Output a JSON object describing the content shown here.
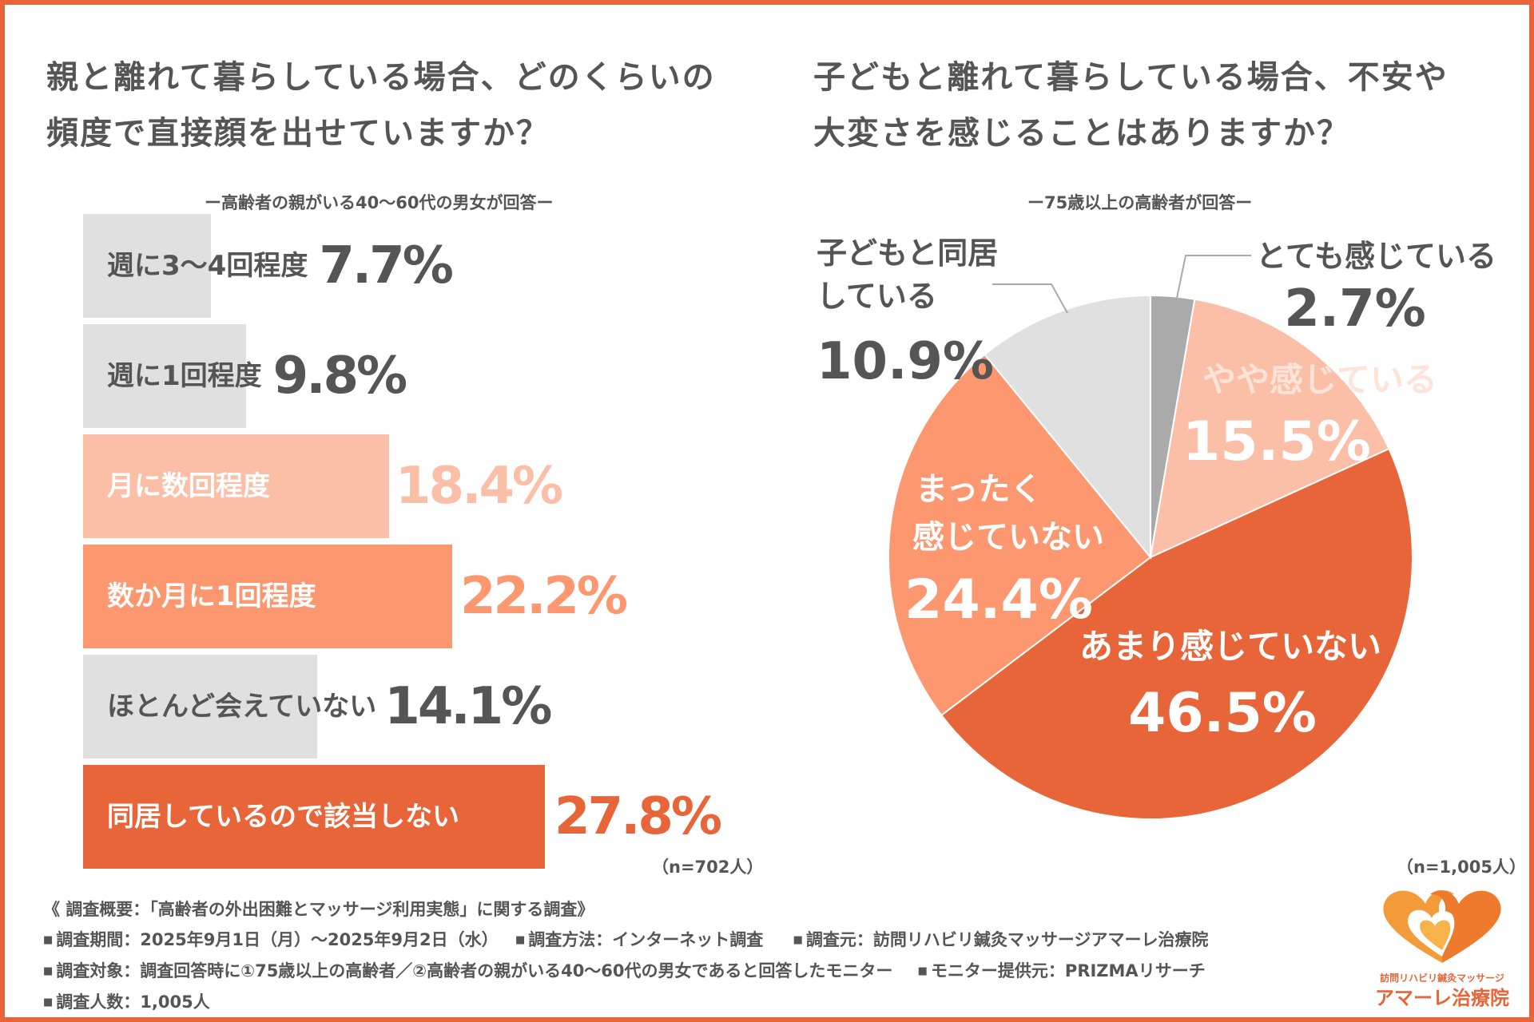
{
  "left": {
    "title_line1": "親と離れて暮らしている場合、どのくらいの",
    "title_line2": "頻度で直接顔を出せていますか？",
    "subtitle": "ー高齢者の親がいる40〜60代の男女が回答ー",
    "n_note": "（n=702人）"
  },
  "right": {
    "title_line1": "子どもと離れて暮らしている場合、不安や",
    "title_line2": "大変さを感じることはありますか？",
    "subtitle": "ー75歳以上の高齢者が回答ー",
    "n_note": "（n=1,005人）"
  },
  "chart_data": [
    {
      "type": "bar",
      "orientation": "horizontal",
      "title": "親と離れて暮らしている場合、どのくらいの頻度で直接顔を出せていますか？",
      "categories": [
        "週に3〜4回程度",
        "週に1回程度",
        "月に数回程度",
        "数か月に1回程度",
        "ほとんど会えていない",
        "同居しているので該当しない"
      ],
      "values": [
        7.7,
        9.8,
        18.4,
        22.2,
        14.1,
        27.8
      ],
      "value_labels": [
        "7.7%",
        "9.8%",
        "18.4%",
        "22.2%",
        "14.1%",
        "27.8%"
      ],
      "bar_colors": [
        "#e0e0e0",
        "#e0e0e0",
        "#fbbfa8",
        "#fc9770",
        "#e0e0e0",
        "#e8653a"
      ],
      "label_colors": [
        "#555555",
        "#555555",
        "#ffffff",
        "#ffffff",
        "#555555",
        "#ffffff"
      ],
      "value_colors": [
        "#555555",
        "#555555",
        "#fbbfa8",
        "#fc9770",
        "#555555",
        "#e8653a"
      ],
      "xlim": [
        0,
        30
      ],
      "unit": "%"
    },
    {
      "type": "pie",
      "title": "子どもと離れて暮らしている場合、不安や大変さを感じることはありますか？",
      "labels": [
        "とても感じている",
        "やや感じている",
        "あまり感じていない",
        "まったく感じていない",
        "子どもと同居している"
      ],
      "values": [
        2.7,
        15.5,
        46.5,
        24.4,
        10.9
      ],
      "value_labels": [
        "2.7%",
        "15.5%",
        "46.5%",
        "24.4%",
        "10.9%"
      ],
      "colors": [
        "#aaaaaa",
        "#fbbfa8",
        "#e8653a",
        "#fc9770",
        "#e0e0e0"
      ],
      "start": "12 o'clock, clockwise"
    }
  ],
  "pie_labels": {
    "totemo": {
      "line1": "とても感じている",
      "value": "2.7%"
    },
    "yaya": {
      "line1": "やや感じている",
      "value": "15.5%"
    },
    "amari": {
      "line1": "あまり感じていない",
      "value": "46.5%"
    },
    "mattaku": {
      "line1": "まったく",
      "line2": "感じていない",
      "value": "24.4%"
    },
    "doukyo": {
      "line1": "子どもと同居",
      "line2": "している",
      "value": "10.9%"
    }
  },
  "footer": {
    "overview": "《 調査概要：「高齢者の外出困難とマッサージ利用実態」に関する調査》",
    "period": "調査期間：2025年9月1日（月）〜2025年9月2日（水）",
    "method": "調査方法：インターネット調査",
    "organizer": "調査元：訪問リハビリ鍼灸マッサージアマーレ治療院",
    "target": "調査対象：調査回答時に①75歳以上の高齢者／②高齢者の親がいる40〜60代の男女であると回答したモニター",
    "provider": "モニター提供元：PRIZMAリサーチ",
    "count": "調査人数：1,005人"
  },
  "logo": {
    "small_text": "訪問リハビリ鍼灸マッサージ",
    "name": "アマーレ治療院"
  },
  "colors": {
    "accent": "#e8653a",
    "mid": "#fc9770",
    "light": "#fbbfa8",
    "gray": "#e0e0e0",
    "dark_gray": "#aaaaaa",
    "text": "#555555"
  }
}
